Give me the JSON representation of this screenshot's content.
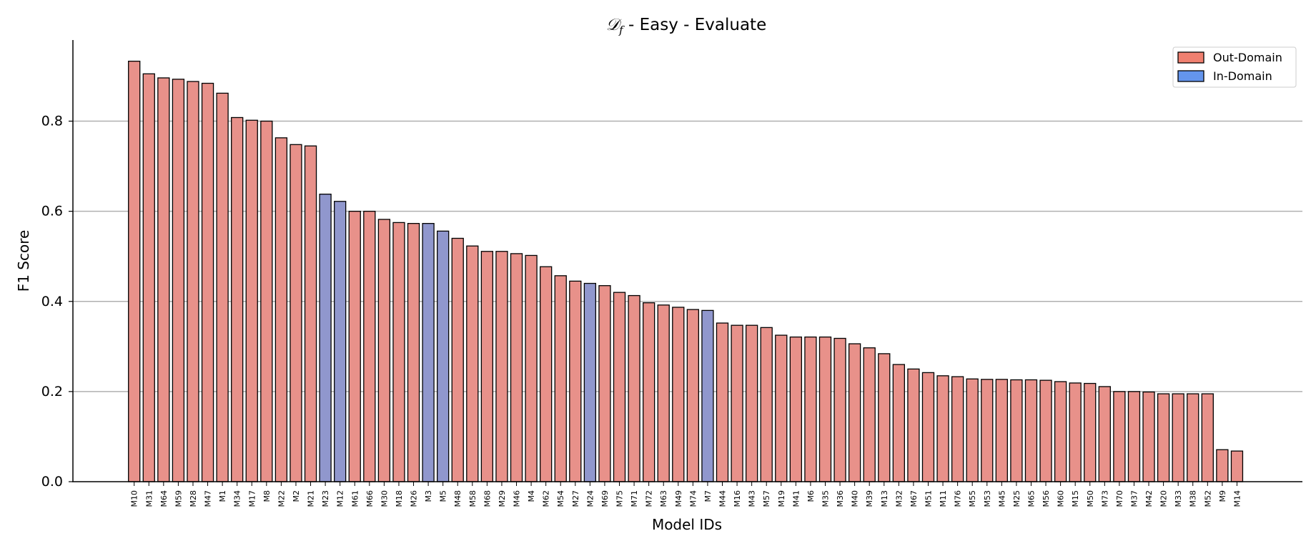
{
  "chart_data": {
    "type": "bar",
    "title_symbol": "𝒟",
    "title_subscript": "f",
    "title_rest": " - Easy - Evaluate",
    "xlabel": "Model IDs",
    "ylabel": "F1 Score",
    "ylim": [
      0,
      0.98
    ],
    "yticks": [
      "0.0",
      "0.2",
      "0.4",
      "0.6",
      "0.8"
    ],
    "grid": "horizontal",
    "legend_position": "top-right",
    "legend": [
      {
        "label": "Out-Domain",
        "color": "#f08070"
      },
      {
        "label": "In-Domain",
        "color": "#6495ed"
      }
    ],
    "bar_colors": {
      "Out-Domain": "#e8918a",
      "In-Domain": "#9097cd"
    },
    "bars": [
      {
        "id": "M10",
        "value": 0.933,
        "domain": "Out-Domain"
      },
      {
        "id": "M31",
        "value": 0.905,
        "domain": "Out-Domain"
      },
      {
        "id": "M64",
        "value": 0.896,
        "domain": "Out-Domain"
      },
      {
        "id": "M59",
        "value": 0.893,
        "domain": "Out-Domain"
      },
      {
        "id": "M28",
        "value": 0.888,
        "domain": "Out-Domain"
      },
      {
        "id": "M47",
        "value": 0.884,
        "domain": "Out-Domain"
      },
      {
        "id": "M1",
        "value": 0.862,
        "domain": "Out-Domain"
      },
      {
        "id": "M34",
        "value": 0.808,
        "domain": "Out-Domain"
      },
      {
        "id": "M17",
        "value": 0.802,
        "domain": "Out-Domain"
      },
      {
        "id": "M8",
        "value": 0.8,
        "domain": "Out-Domain"
      },
      {
        "id": "M22",
        "value": 0.763,
        "domain": "Out-Domain"
      },
      {
        "id": "M2",
        "value": 0.748,
        "domain": "Out-Domain"
      },
      {
        "id": "M21",
        "value": 0.745,
        "domain": "Out-Domain"
      },
      {
        "id": "M23",
        "value": 0.638,
        "domain": "In-Domain"
      },
      {
        "id": "M12",
        "value": 0.622,
        "domain": "In-Domain"
      },
      {
        "id": "M61",
        "value": 0.6,
        "domain": "Out-Domain"
      },
      {
        "id": "M66",
        "value": 0.6,
        "domain": "Out-Domain"
      },
      {
        "id": "M30",
        "value": 0.582,
        "domain": "Out-Domain"
      },
      {
        "id": "M18",
        "value": 0.575,
        "domain": "Out-Domain"
      },
      {
        "id": "M26",
        "value": 0.573,
        "domain": "Out-Domain"
      },
      {
        "id": "M3",
        "value": 0.573,
        "domain": "In-Domain"
      },
      {
        "id": "M5",
        "value": 0.556,
        "domain": "In-Domain"
      },
      {
        "id": "M48",
        "value": 0.54,
        "domain": "Out-Domain"
      },
      {
        "id": "M58",
        "value": 0.523,
        "domain": "Out-Domain"
      },
      {
        "id": "M68",
        "value": 0.511,
        "domain": "Out-Domain"
      },
      {
        "id": "M29",
        "value": 0.511,
        "domain": "Out-Domain"
      },
      {
        "id": "M46",
        "value": 0.506,
        "domain": "Out-Domain"
      },
      {
        "id": "M4",
        "value": 0.502,
        "domain": "Out-Domain"
      },
      {
        "id": "M62",
        "value": 0.477,
        "domain": "Out-Domain"
      },
      {
        "id": "M54",
        "value": 0.457,
        "domain": "Out-Domain"
      },
      {
        "id": "M27",
        "value": 0.445,
        "domain": "Out-Domain"
      },
      {
        "id": "M24",
        "value": 0.44,
        "domain": "In-Domain"
      },
      {
        "id": "M69",
        "value": 0.435,
        "domain": "Out-Domain"
      },
      {
        "id": "M75",
        "value": 0.42,
        "domain": "Out-Domain"
      },
      {
        "id": "M71",
        "value": 0.413,
        "domain": "Out-Domain"
      },
      {
        "id": "M72",
        "value": 0.397,
        "domain": "Out-Domain"
      },
      {
        "id": "M63",
        "value": 0.392,
        "domain": "Out-Domain"
      },
      {
        "id": "M49",
        "value": 0.387,
        "domain": "Out-Domain"
      },
      {
        "id": "M74",
        "value": 0.382,
        "domain": "Out-Domain"
      },
      {
        "id": "M7",
        "value": 0.38,
        "domain": "In-Domain"
      },
      {
        "id": "M44",
        "value": 0.352,
        "domain": "Out-Domain"
      },
      {
        "id": "M16",
        "value": 0.347,
        "domain": "Out-Domain"
      },
      {
        "id": "M43",
        "value": 0.347,
        "domain": "Out-Domain"
      },
      {
        "id": "M57",
        "value": 0.342,
        "domain": "Out-Domain"
      },
      {
        "id": "M19",
        "value": 0.325,
        "domain": "Out-Domain"
      },
      {
        "id": "M41",
        "value": 0.321,
        "domain": "Out-Domain"
      },
      {
        "id": "M6",
        "value": 0.321,
        "domain": "Out-Domain"
      },
      {
        "id": "M35",
        "value": 0.321,
        "domain": "Out-Domain"
      },
      {
        "id": "M36",
        "value": 0.318,
        "domain": "Out-Domain"
      },
      {
        "id": "M40",
        "value": 0.306,
        "domain": "Out-Domain"
      },
      {
        "id": "M39",
        "value": 0.297,
        "domain": "Out-Domain"
      },
      {
        "id": "M13",
        "value": 0.284,
        "domain": "Out-Domain"
      },
      {
        "id": "M32",
        "value": 0.26,
        "domain": "Out-Domain"
      },
      {
        "id": "M67",
        "value": 0.25,
        "domain": "Out-Domain"
      },
      {
        "id": "M51",
        "value": 0.242,
        "domain": "Out-Domain"
      },
      {
        "id": "M11",
        "value": 0.235,
        "domain": "Out-Domain"
      },
      {
        "id": "M76",
        "value": 0.233,
        "domain": "Out-Domain"
      },
      {
        "id": "M55",
        "value": 0.228,
        "domain": "Out-Domain"
      },
      {
        "id": "M53",
        "value": 0.227,
        "domain": "Out-Domain"
      },
      {
        "id": "M45",
        "value": 0.227,
        "domain": "Out-Domain"
      },
      {
        "id": "M25",
        "value": 0.226,
        "domain": "Out-Domain"
      },
      {
        "id": "M65",
        "value": 0.226,
        "domain": "Out-Domain"
      },
      {
        "id": "M56",
        "value": 0.225,
        "domain": "Out-Domain"
      },
      {
        "id": "M60",
        "value": 0.222,
        "domain": "Out-Domain"
      },
      {
        "id": "M15",
        "value": 0.219,
        "domain": "Out-Domain"
      },
      {
        "id": "M50",
        "value": 0.218,
        "domain": "Out-Domain"
      },
      {
        "id": "M73",
        "value": 0.211,
        "domain": "Out-Domain"
      },
      {
        "id": "M70",
        "value": 0.2,
        "domain": "Out-Domain"
      },
      {
        "id": "M37",
        "value": 0.2,
        "domain": "Out-Domain"
      },
      {
        "id": "M42",
        "value": 0.199,
        "domain": "Out-Domain"
      },
      {
        "id": "M20",
        "value": 0.195,
        "domain": "Out-Domain"
      },
      {
        "id": "M33",
        "value": 0.195,
        "domain": "Out-Domain"
      },
      {
        "id": "M38",
        "value": 0.195,
        "domain": "Out-Domain"
      },
      {
        "id": "M52",
        "value": 0.195,
        "domain": "Out-Domain"
      },
      {
        "id": "M9",
        "value": 0.071,
        "domain": "Out-Domain"
      },
      {
        "id": "M14",
        "value": 0.068,
        "domain": "Out-Domain"
      }
    ]
  }
}
